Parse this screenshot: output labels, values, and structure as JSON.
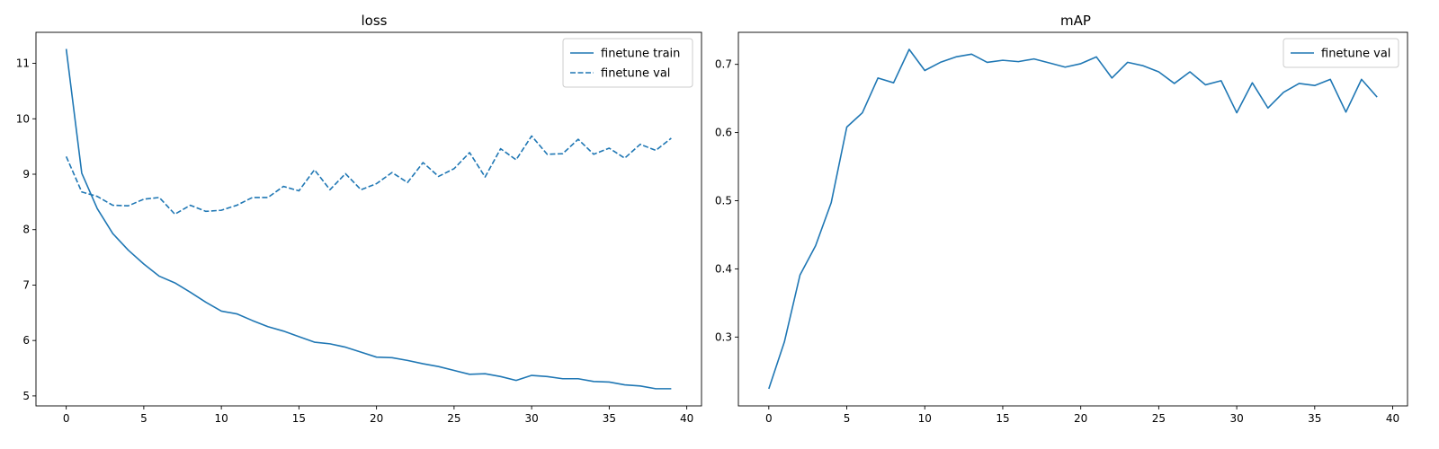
{
  "colors": {
    "series": "#1f77b4",
    "axis": "#000000",
    "legend_border": "#cccccc",
    "background": "#ffffff"
  },
  "chart_data": [
    {
      "type": "line",
      "title": "loss",
      "xlabel": "",
      "ylabel": "",
      "xlim": [
        -1.95,
        40.95
      ],
      "ylim": [
        4.82,
        11.56
      ],
      "x_ticks": [
        0,
        5,
        10,
        15,
        20,
        25,
        30,
        35,
        40
      ],
      "y_ticks": [
        5,
        6,
        7,
        8,
        9,
        10,
        11
      ],
      "legend_position": "top-right",
      "grid": false,
      "x": [
        0,
        1,
        2,
        3,
        4,
        5,
        6,
        7,
        8,
        9,
        10,
        11,
        12,
        13,
        14,
        15,
        16,
        17,
        18,
        19,
        20,
        21,
        22,
        23,
        24,
        25,
        26,
        27,
        28,
        29,
        30,
        31,
        32,
        33,
        34,
        35,
        36,
        37,
        38,
        39
      ],
      "series": [
        {
          "name": "finetune train",
          "style": "solid",
          "values": [
            11.26,
            9.02,
            8.38,
            7.93,
            7.63,
            7.38,
            7.16,
            7.04,
            6.87,
            6.69,
            6.53,
            6.48,
            6.36,
            6.25,
            6.17,
            6.07,
            5.97,
            5.94,
            5.88,
            5.79,
            5.7,
            5.69,
            5.64,
            5.58,
            5.53,
            5.46,
            5.39,
            5.4,
            5.35,
            5.28,
            5.37,
            5.35,
            5.31,
            5.31,
            5.26,
            5.25,
            5.2,
            5.18,
            5.13,
            5.13
          ]
        },
        {
          "name": "finetune val",
          "style": "dashed",
          "values": [
            9.32,
            8.68,
            8.6,
            8.44,
            8.43,
            8.55,
            8.58,
            8.28,
            8.44,
            8.33,
            8.35,
            8.44,
            8.58,
            8.58,
            8.78,
            8.7,
            9.08,
            8.72,
            9.01,
            8.72,
            8.83,
            9.03,
            8.85,
            9.21,
            8.96,
            9.1,
            9.39,
            8.95,
            9.46,
            9.26,
            9.69,
            9.36,
            9.37,
            9.63,
            9.36,
            9.47,
            9.29,
            9.54,
            9.43,
            9.65
          ]
        }
      ]
    },
    {
      "type": "line",
      "title": "mAP",
      "xlabel": "",
      "ylabel": "",
      "xlim": [
        -1.95,
        40.95
      ],
      "ylim": [
        0.199,
        0.747
      ],
      "x_ticks": [
        0,
        5,
        10,
        15,
        20,
        25,
        30,
        35,
        40
      ],
      "y_ticks": [
        0.3,
        0.4,
        0.5,
        0.6,
        0.7
      ],
      "y_tick_labels": [
        "0.3",
        "0.4",
        "0.5",
        "0.6",
        "0.7"
      ],
      "legend_position": "top-right",
      "grid": false,
      "x": [
        0,
        1,
        2,
        3,
        4,
        5,
        6,
        7,
        8,
        9,
        10,
        11,
        12,
        13,
        14,
        15,
        16,
        17,
        18,
        19,
        20,
        21,
        22,
        23,
        24,
        25,
        26,
        27,
        28,
        29,
        30,
        31,
        32,
        33,
        34,
        35,
        36,
        37,
        38,
        39
      ],
      "series": [
        {
          "name": "finetune val",
          "style": "solid",
          "values": [
            0.224,
            0.293,
            0.391,
            0.434,
            0.497,
            0.608,
            0.629,
            0.68,
            0.673,
            0.722,
            0.691,
            0.703,
            0.711,
            0.715,
            0.703,
            0.706,
            0.704,
            0.708,
            0.702,
            0.696,
            0.701,
            0.711,
            0.68,
            0.703,
            0.698,
            0.689,
            0.672,
            0.689,
            0.67,
            0.676,
            0.629,
            0.673,
            0.636,
            0.659,
            0.672,
            0.669,
            0.678,
            0.63,
            0.678,
            0.652
          ]
        }
      ]
    }
  ]
}
